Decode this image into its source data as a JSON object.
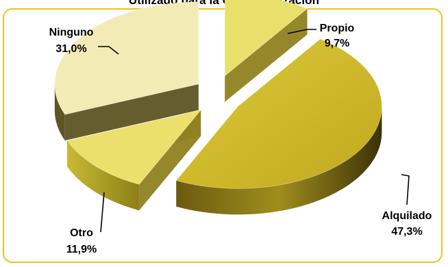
{
  "chart_data": {
    "type": "pie",
    "title": "Utilizado para la Comercialización",
    "slices": [
      {
        "label": "Propio",
        "value": 9.7,
        "display": "9,7%",
        "color": "#e8e06a"
      },
      {
        "label": "Alquilado",
        "value": 47.3,
        "display": "47,3%",
        "color": "#cdb728"
      },
      {
        "label": "Otro",
        "value": 11.9,
        "display": "11,9%",
        "color": "#ece06c"
      },
      {
        "label": "Ninguno",
        "value": 31.0,
        "display": "31,0%",
        "color": "#f3ebb6"
      }
    ],
    "exploded": true,
    "three_d": true,
    "frame_color": "#f2c21b"
  }
}
